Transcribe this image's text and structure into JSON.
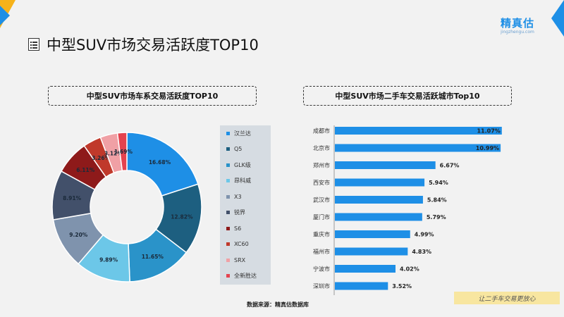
{
  "brand": {
    "name": "精真估",
    "domain": "jingzhengu.com",
    "color": "#1e8fe6"
  },
  "page": {
    "title": "中型SUV市场交易活跃度TOP10",
    "source": "数据来源：精真估数据库",
    "slogan": "让二手车交易更放心"
  },
  "chart_data": [
    {
      "type": "pie",
      "donut": true,
      "title": "中型SUV市场车系交易活跃度TOP10",
      "categories": [
        "汉兰达",
        "Q5",
        "GLK级",
        "昂科威",
        "X3",
        "锐界",
        "S6",
        "XC60",
        "SRX",
        "全新胜达"
      ],
      "values": [
        16.68,
        12.82,
        11.65,
        9.89,
        9.2,
        8.91,
        6.11,
        3.26,
        3.12,
        1.69
      ],
      "labels": [
        "16.68%",
        "12.82%",
        "11.65%",
        "9.89%",
        "9.20%",
        "8.91%",
        "6.11%",
        "3.26%",
        "3.12%",
        "1.69%"
      ],
      "colors": [
        "#1e8fe6",
        "#1d5f80",
        "#2a93c9",
        "#6cc7e8",
        "#7f93ad",
        "#42506a",
        "#8e1a1a",
        "#c0392b",
        "#f0a0a5",
        "#e4434f"
      ],
      "legend": "right"
    },
    {
      "type": "bar",
      "orientation": "horizontal",
      "title": "中型SUV市场二手车交易活跃城市Top10",
      "categories": [
        "成都市",
        "北京市",
        "郑州市",
        "西安市",
        "武汉市",
        "厦门市",
        "重庆市",
        "福州市",
        "宁波市",
        "深圳市"
      ],
      "values": [
        11.07,
        10.99,
        6.67,
        5.94,
        5.84,
        5.79,
        4.99,
        4.83,
        4.02,
        3.52
      ],
      "labels": [
        "11.07%",
        "10.99%",
        "6.67%",
        "5.94%",
        "5.84%",
        "5.79%",
        "4.99%",
        "4.83%",
        "4.02%",
        "3.52%"
      ],
      "color": "#1e8fe6",
      "xlim": [
        0,
        11.5
      ]
    }
  ]
}
